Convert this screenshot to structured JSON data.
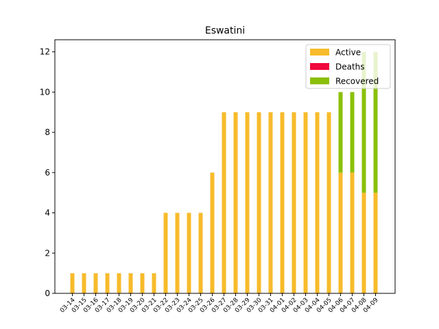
{
  "chart_data": {
    "type": "bar",
    "stacked": true,
    "title": "Eswatini",
    "xlabel": "",
    "ylabel": "",
    "ylim": [
      0,
      12.6
    ],
    "yticks": [
      0,
      2,
      4,
      6,
      8,
      10,
      12
    ],
    "grid": false,
    "legend_position": "top-right",
    "categories": [
      "03-14",
      "03-15",
      "03-16",
      "03-17",
      "03-18",
      "03-19",
      "03-20",
      "03-21",
      "03-22",
      "03-23",
      "03-24",
      "03-25",
      "03-26",
      "03-27",
      "03-28",
      "03-29",
      "03-30",
      "03-31",
      "04-01",
      "04-02",
      "04-03",
      "04-04",
      "04-05",
      "04-06",
      "04-07",
      "04-08",
      "04-09"
    ],
    "series": [
      {
        "name": "Active",
        "color": "#f7bb2b",
        "values": [
          1,
          1,
          1,
          1,
          1,
          1,
          1,
          1,
          4,
          4,
          4,
          4,
          6,
          9,
          9,
          9,
          9,
          9,
          9,
          9,
          9,
          9,
          9,
          6,
          6,
          5,
          5
        ]
      },
      {
        "name": "Deaths",
        "color": "#f0083c",
        "values": [
          0,
          0,
          0,
          0,
          0,
          0,
          0,
          0,
          0,
          0,
          0,
          0,
          0,
          0,
          0,
          0,
          0,
          0,
          0,
          0,
          0,
          0,
          0,
          0,
          0,
          0,
          0
        ]
      },
      {
        "name": "Recovered",
        "color": "#8bc00a",
        "values": [
          0,
          0,
          0,
          0,
          0,
          0,
          0,
          0,
          0,
          0,
          0,
          0,
          0,
          0,
          0,
          0,
          0,
          0,
          0,
          0,
          0,
          0,
          0,
          4,
          4,
          7,
          7
        ]
      }
    ]
  }
}
